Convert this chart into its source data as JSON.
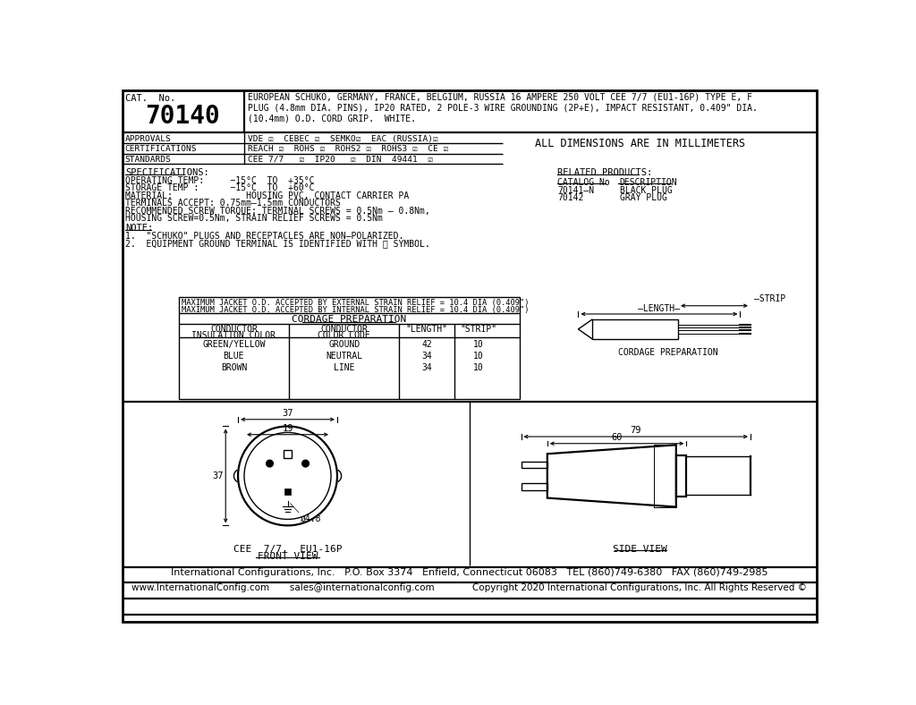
{
  "bg_color": "#ffffff",
  "border_color": "#000000",
  "title_cat_no": "CAT.  No.",
  "title_number": "70140",
  "title_desc": "EUROPEAN SCHUKO, GERMANY, FRANCE, BELGIUM, RUSSIA 16 AMPERE 250 VOLT CEE 7/7 (EU1-16P) TYPE E, F\nPLUG (4.8mm DIA. PINS), IP20 RATED, 2 POLE-3 WIRE GROUNDING (2P+E), IMPACT RESISTANT, 0.409\" DIA.\n(10.4mm) O.D. CORD GRIP.  WHITE.",
  "approvals_label": "APPROVALS",
  "approvals_value": "VDE ☑  CEBEC ☑  SEMKO☑  EAC (RUSSIA)☑",
  "cert_label": "CERTIFICATIONS",
  "cert_value": "REACH ☑  ROHS ☑  ROHS2 ☑  ROHS3 ☑  CE ☑",
  "std_label": "STANDARDS",
  "std_value": "CEE 7/7   ☑  IP20   ☑  DIN  49441  ☑",
  "all_dims": "ALL DIMENSIONS ARE IN MILLIMETERS",
  "specs_title": "SPECIFICATIONS:",
  "specs": [
    "OPERATING TEMP:     −15°C  TO  +35°C",
    "STORAGE TEMP :      −15°C  TO  +60°C",
    "MATERIAL:              HOUSING PVC, CONTACT CARRIER PA",
    "TERMINALS ACCEPT: 0.75mm–1.5mm CONDUCTORS",
    "RECOMMENDED SCREW TORQUE: TERMINAL SCREWS = 0.5Nm – 0.8Nm,",
    "HOUSING SCREW=0.5Nm, STRAIN RELIEF SCREWS = 0.5Nm"
  ],
  "note_title": "NOTE:",
  "notes": [
    "1.  \"SCHUKO\" PLUGS AND RECEPTACLES ARE NON–POLARIZED.",
    "2.  EQUIPMENT GROUND TERMINAL IS IDENTIFIED WITH ⏚ SYMBOL."
  ],
  "related_title": "RELATED PRODUCTS:",
  "related_header": [
    "CATALOG No",
    "DESCRIPTION"
  ],
  "related_products": [
    [
      "70141–N",
      "BLACK PLUG"
    ],
    [
      "70142",
      "GRAY PLUG"
    ]
  ],
  "cord_title1": "MAXIMUM JACKET O.D. ACCEPTED BY EXTERNAL STRAIN RELIEF = 10.4 DIA (0.409\")",
  "cord_title2": "MAXIMUM JACKET O.D. ACCEPTED BY INTERNAL STRAIN RELIEF = 10.4 DIA (0.409\")",
  "cord_prep": "CORDAGE PREPARATION",
  "cord_headers": [
    "CONDUCTOR\nINSULATION COLOR",
    "CONDUCTOR\nCOLOR CODE",
    "\"LENGTH\"",
    "\"STRIP\""
  ],
  "cord_rows": [
    [
      "GREEN/YELLOW",
      "GROUND",
      "42",
      "10"
    ],
    [
      "BLUE",
      "NEUTRAL",
      "34",
      "10"
    ],
    [
      "BROWN",
      "LINE",
      "34",
      "10"
    ]
  ],
  "front_view_line1": "CEE  7/7,  EU1-16P",
  "front_view_line2": "FRONT VIEW",
  "side_view_label": "SIDE VIEW",
  "footer1": "International Configurations, Inc.   P.O. Box 3374   Enfield, Connecticut 06083   TEL (860)749-6380   FAX (860)749-2985",
  "footer2": "www.InternationalConfig.com       sales@internationalconfig.com             Copyright 2020 International Configurations, Inc. All Rights Reserved ©",
  "dim_37_top": "37",
  "dim_19": "19",
  "dim_37_left": "37",
  "dim_phi48": "ø4.8",
  "dim_79": "79",
  "dim_60": "60",
  "cord_diag_label": "CORDAGE PREPARATION",
  "length_label": "—LENGTH—",
  "strip_label": "—STRIP"
}
